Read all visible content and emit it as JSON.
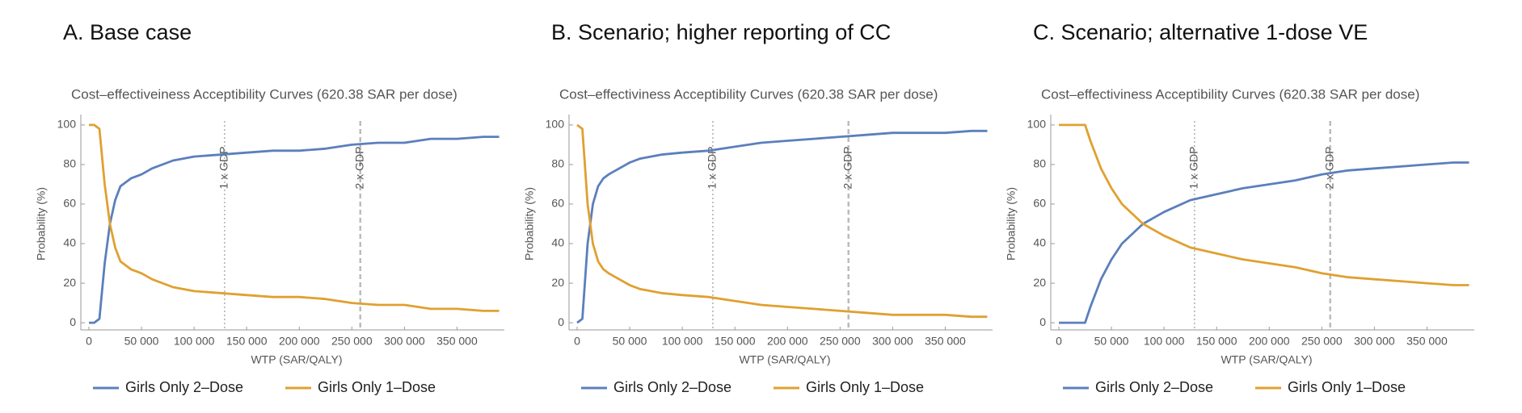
{
  "chart_data": [
    {
      "type": "line",
      "panel": "A.   Base case",
      "title": "Cost–effectiveiness Acceptibility Curves (620.38 SAR per dose)",
      "xlabel": "WTP (SAR/QALY)",
      "ylabel": "Probability (%)",
      "x": [
        0,
        5000,
        10000,
        15000,
        20000,
        25000,
        30000,
        40000,
        50000,
        60000,
        80000,
        100000,
        125000,
        150000,
        175000,
        200000,
        225000,
        250000,
        275000,
        300000,
        325000,
        350000,
        375000,
        390000
      ],
      "series": [
        {
          "name": "Girls Only 2–Dose",
          "color": "#5b7fbd",
          "values": [
            0,
            0,
            2,
            30,
            50,
            62,
            69,
            73,
            75,
            78,
            82,
            84,
            85,
            86,
            87,
            87,
            88,
            90,
            91,
            91,
            93,
            93,
            94,
            94
          ]
        },
        {
          "name": "Girls Only 1–Dose",
          "color": "#e0a030",
          "values": [
            100,
            100,
            98,
            70,
            50,
            38,
            31,
            27,
            25,
            22,
            18,
            16,
            15,
            14,
            13,
            13,
            12,
            10,
            9,
            9,
            7,
            7,
            6,
            6
          ]
        }
      ],
      "xlim": [
        0,
        395000
      ],
      "ylim": [
        -2,
        102
      ],
      "xticks": [
        0,
        {
          "value": 50000,
          "label": "50 000"
        },
        {
          "value": 100000,
          "label": "100 000"
        },
        {
          "value": 150000,
          "label": "150 000"
        },
        {
          "value": 200000,
          "label": "200 000"
        },
        {
          "value": 250000,
          "label": "250 000"
        },
        {
          "value": 300000,
          "label": "300 000"
        },
        {
          "value": 350000,
          "label": "350 000"
        }
      ],
      "yticks": [
        0,
        20,
        40,
        60,
        80,
        100
      ],
      "annotations": [
        {
          "x": 129000,
          "text": "1 x GDP",
          "style": "dotted"
        },
        {
          "x": 258000,
          "text": "2 x GDP",
          "style": "dashed"
        }
      ]
    },
    {
      "type": "line",
      "panel": "B.   Scenario; higher reporting of CC",
      "title": "Cost–effectiviness Acceptibility Curves (620.38 SAR per dose)",
      "xlabel": "WTP (SAR/QALY)",
      "ylabel": "Probability (%)",
      "x": [
        0,
        5000,
        10000,
        15000,
        20000,
        25000,
        30000,
        40000,
        50000,
        60000,
        80000,
        100000,
        125000,
        150000,
        175000,
        200000,
        225000,
        250000,
        275000,
        300000,
        325000,
        350000,
        375000,
        390000
      ],
      "series": [
        {
          "name": "Girls Only 2–Dose",
          "color": "#5b7fbd",
          "values": [
            0,
            2,
            40,
            60,
            69,
            73,
            75,
            78,
            81,
            83,
            85,
            86,
            87,
            89,
            91,
            92,
            93,
            94,
            95,
            96,
            96,
            96,
            97,
            97
          ]
        },
        {
          "name": "Girls Only 1–Dose",
          "color": "#e0a030",
          "values": [
            100,
            98,
            60,
            40,
            31,
            27,
            25,
            22,
            19,
            17,
            15,
            14,
            13,
            11,
            9,
            8,
            7,
            6,
            5,
            4,
            4,
            4,
            3,
            3
          ]
        }
      ],
      "xlim": [
        0,
        395000
      ],
      "ylim": [
        -2,
        102
      ],
      "xticks": [
        0,
        {
          "value": 50000,
          "label": "50 000"
        },
        {
          "value": 100000,
          "label": "100 000"
        },
        {
          "value": 150000,
          "label": "150 000"
        },
        {
          "value": 200000,
          "label": "200 000"
        },
        {
          "value": 250000,
          "label": "250 000"
        },
        {
          "value": 300000,
          "label": "300 000"
        },
        {
          "value": 350000,
          "label": "350 000"
        }
      ],
      "yticks": [
        0,
        20,
        40,
        60,
        80,
        100
      ],
      "annotations": [
        {
          "x": 129000,
          "text": "1 x GDP",
          "style": "dotted"
        },
        {
          "x": 258000,
          "text": "2 x GDP",
          "style": "dashed"
        }
      ]
    },
    {
      "type": "line",
      "panel": "C.   Scenario; alternative 1-dose VE",
      "title": "Cost–effectiviness Acceptibility Curves (620.38 SAR per dose)",
      "xlabel": "WTP (SAR/QALY)",
      "ylabel": "Probability (%)",
      "x": [
        0,
        5000,
        10000,
        15000,
        20000,
        25000,
        30000,
        40000,
        50000,
        60000,
        80000,
        100000,
        125000,
        150000,
        175000,
        200000,
        225000,
        250000,
        275000,
        300000,
        325000,
        350000,
        375000,
        390000
      ],
      "series": [
        {
          "name": "Girls Only 2–Dose",
          "color": "#5b7fbd",
          "values": [
            0,
            0,
            0,
            0,
            0,
            0,
            8,
            22,
            32,
            40,
            50,
            56,
            62,
            65,
            68,
            70,
            72,
            75,
            77,
            78,
            79,
            80,
            81,
            81
          ]
        },
        {
          "name": "Girls Only 1–Dose",
          "color": "#e0a030",
          "values": [
            100,
            100,
            100,
            100,
            100,
            100,
            92,
            78,
            68,
            60,
            50,
            44,
            38,
            35,
            32,
            30,
            28,
            25,
            23,
            22,
            21,
            20,
            19,
            19
          ]
        }
      ],
      "xlim": [
        0,
        395000
      ],
      "ylim": [
        -2,
        102
      ],
      "xticks": [
        0,
        {
          "value": 50000,
          "label": "50 000"
        },
        {
          "value": 100000,
          "label": "100 000"
        },
        {
          "value": 150000,
          "label": "150 000"
        },
        {
          "value": 200000,
          "label": "200 000"
        },
        {
          "value": 250000,
          "label": "250 000"
        },
        {
          "value": 300000,
          "label": "300 000"
        },
        {
          "value": 350000,
          "label": "350 000"
        }
      ],
      "yticks": [
        0,
        20,
        40,
        60,
        80,
        100
      ],
      "annotations": [
        {
          "x": 129000,
          "text": "1 x GDP",
          "style": "dotted"
        },
        {
          "x": 258000,
          "text": "2 x GDP",
          "style": "dashed"
        }
      ]
    }
  ]
}
